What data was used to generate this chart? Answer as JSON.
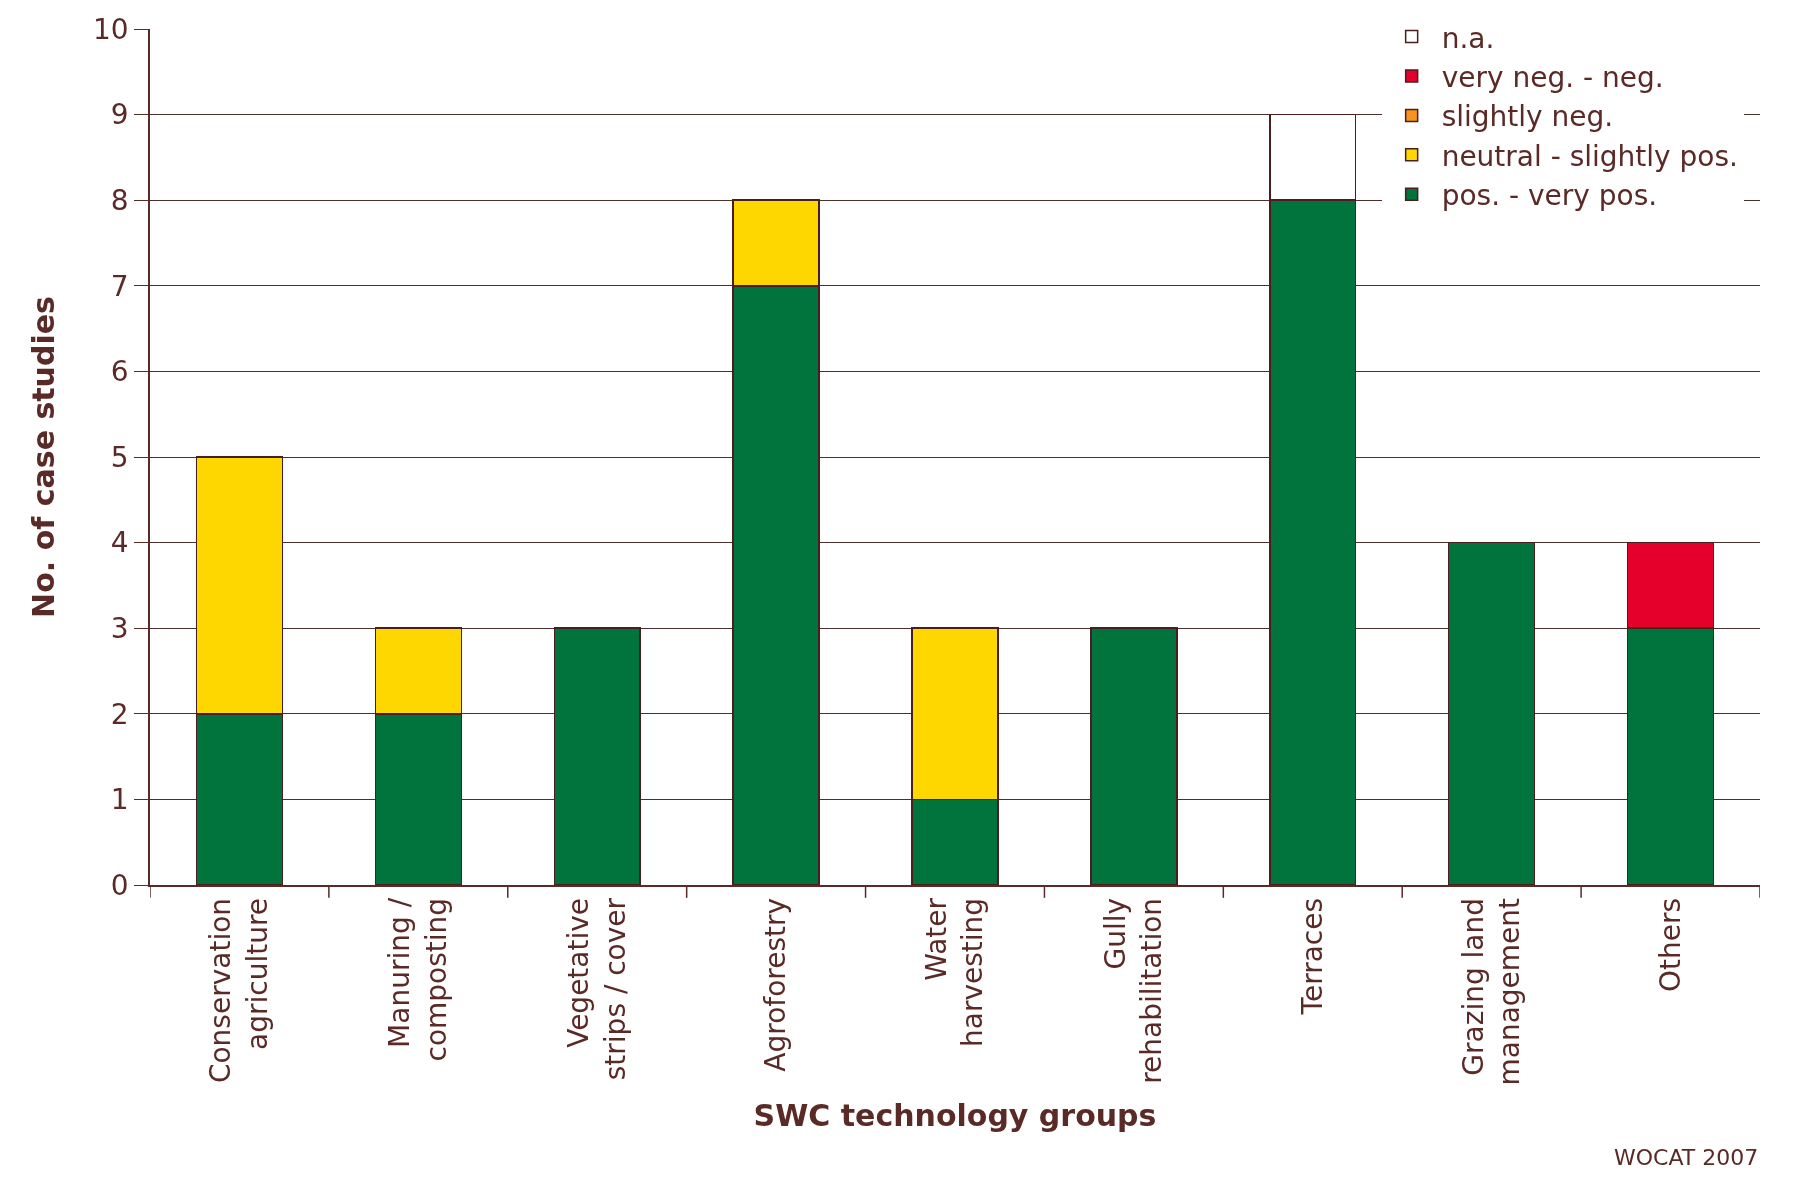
{
  "chart_data": {
    "type": "bar",
    "stacked": true,
    "xlabel": "SWC technology groups",
    "ylabel": "No. of case studies",
    "categories": [
      "Conservation\nagriculture",
      "Manuring /\ncomposting",
      "Vegetative\nstrips / cover",
      "Agroforestry",
      "Water\nharvesting",
      "Gully\nrehabilitation",
      "Terraces",
      "Grazing land\nmanagement",
      "Others"
    ],
    "series": [
      {
        "name": "pos. - very pos.",
        "color": "#00743c",
        "values": [
          2,
          2,
          3,
          7,
          1,
          3,
          8,
          4,
          3
        ]
      },
      {
        "name": "neutral - slightly pos.",
        "color": "#ffd700",
        "values": [
          3,
          1,
          null,
          1,
          2,
          null,
          null,
          null,
          null
        ]
      },
      {
        "name": "slightly neg.",
        "color": "#f7941d",
        "values": [
          null,
          null,
          null,
          null,
          null,
          null,
          null,
          null,
          null
        ]
      },
      {
        "name": "very neg. - neg.",
        "color": "#e4002b",
        "values": [
          null,
          null,
          null,
          null,
          null,
          null,
          null,
          null,
          1
        ]
      },
      {
        "name": "n.a.",
        "color": "#ffffff",
        "values": [
          null,
          null,
          null,
          null,
          null,
          null,
          1,
          null,
          null
        ]
      }
    ],
    "ylim": [
      0,
      10
    ],
    "yticks": [
      0,
      1,
      2,
      3,
      4,
      5,
      6,
      7,
      8,
      9,
      10
    ],
    "grid": "y",
    "legend": "top right",
    "annotations": [
      "WOCAT 2007"
    ]
  }
}
